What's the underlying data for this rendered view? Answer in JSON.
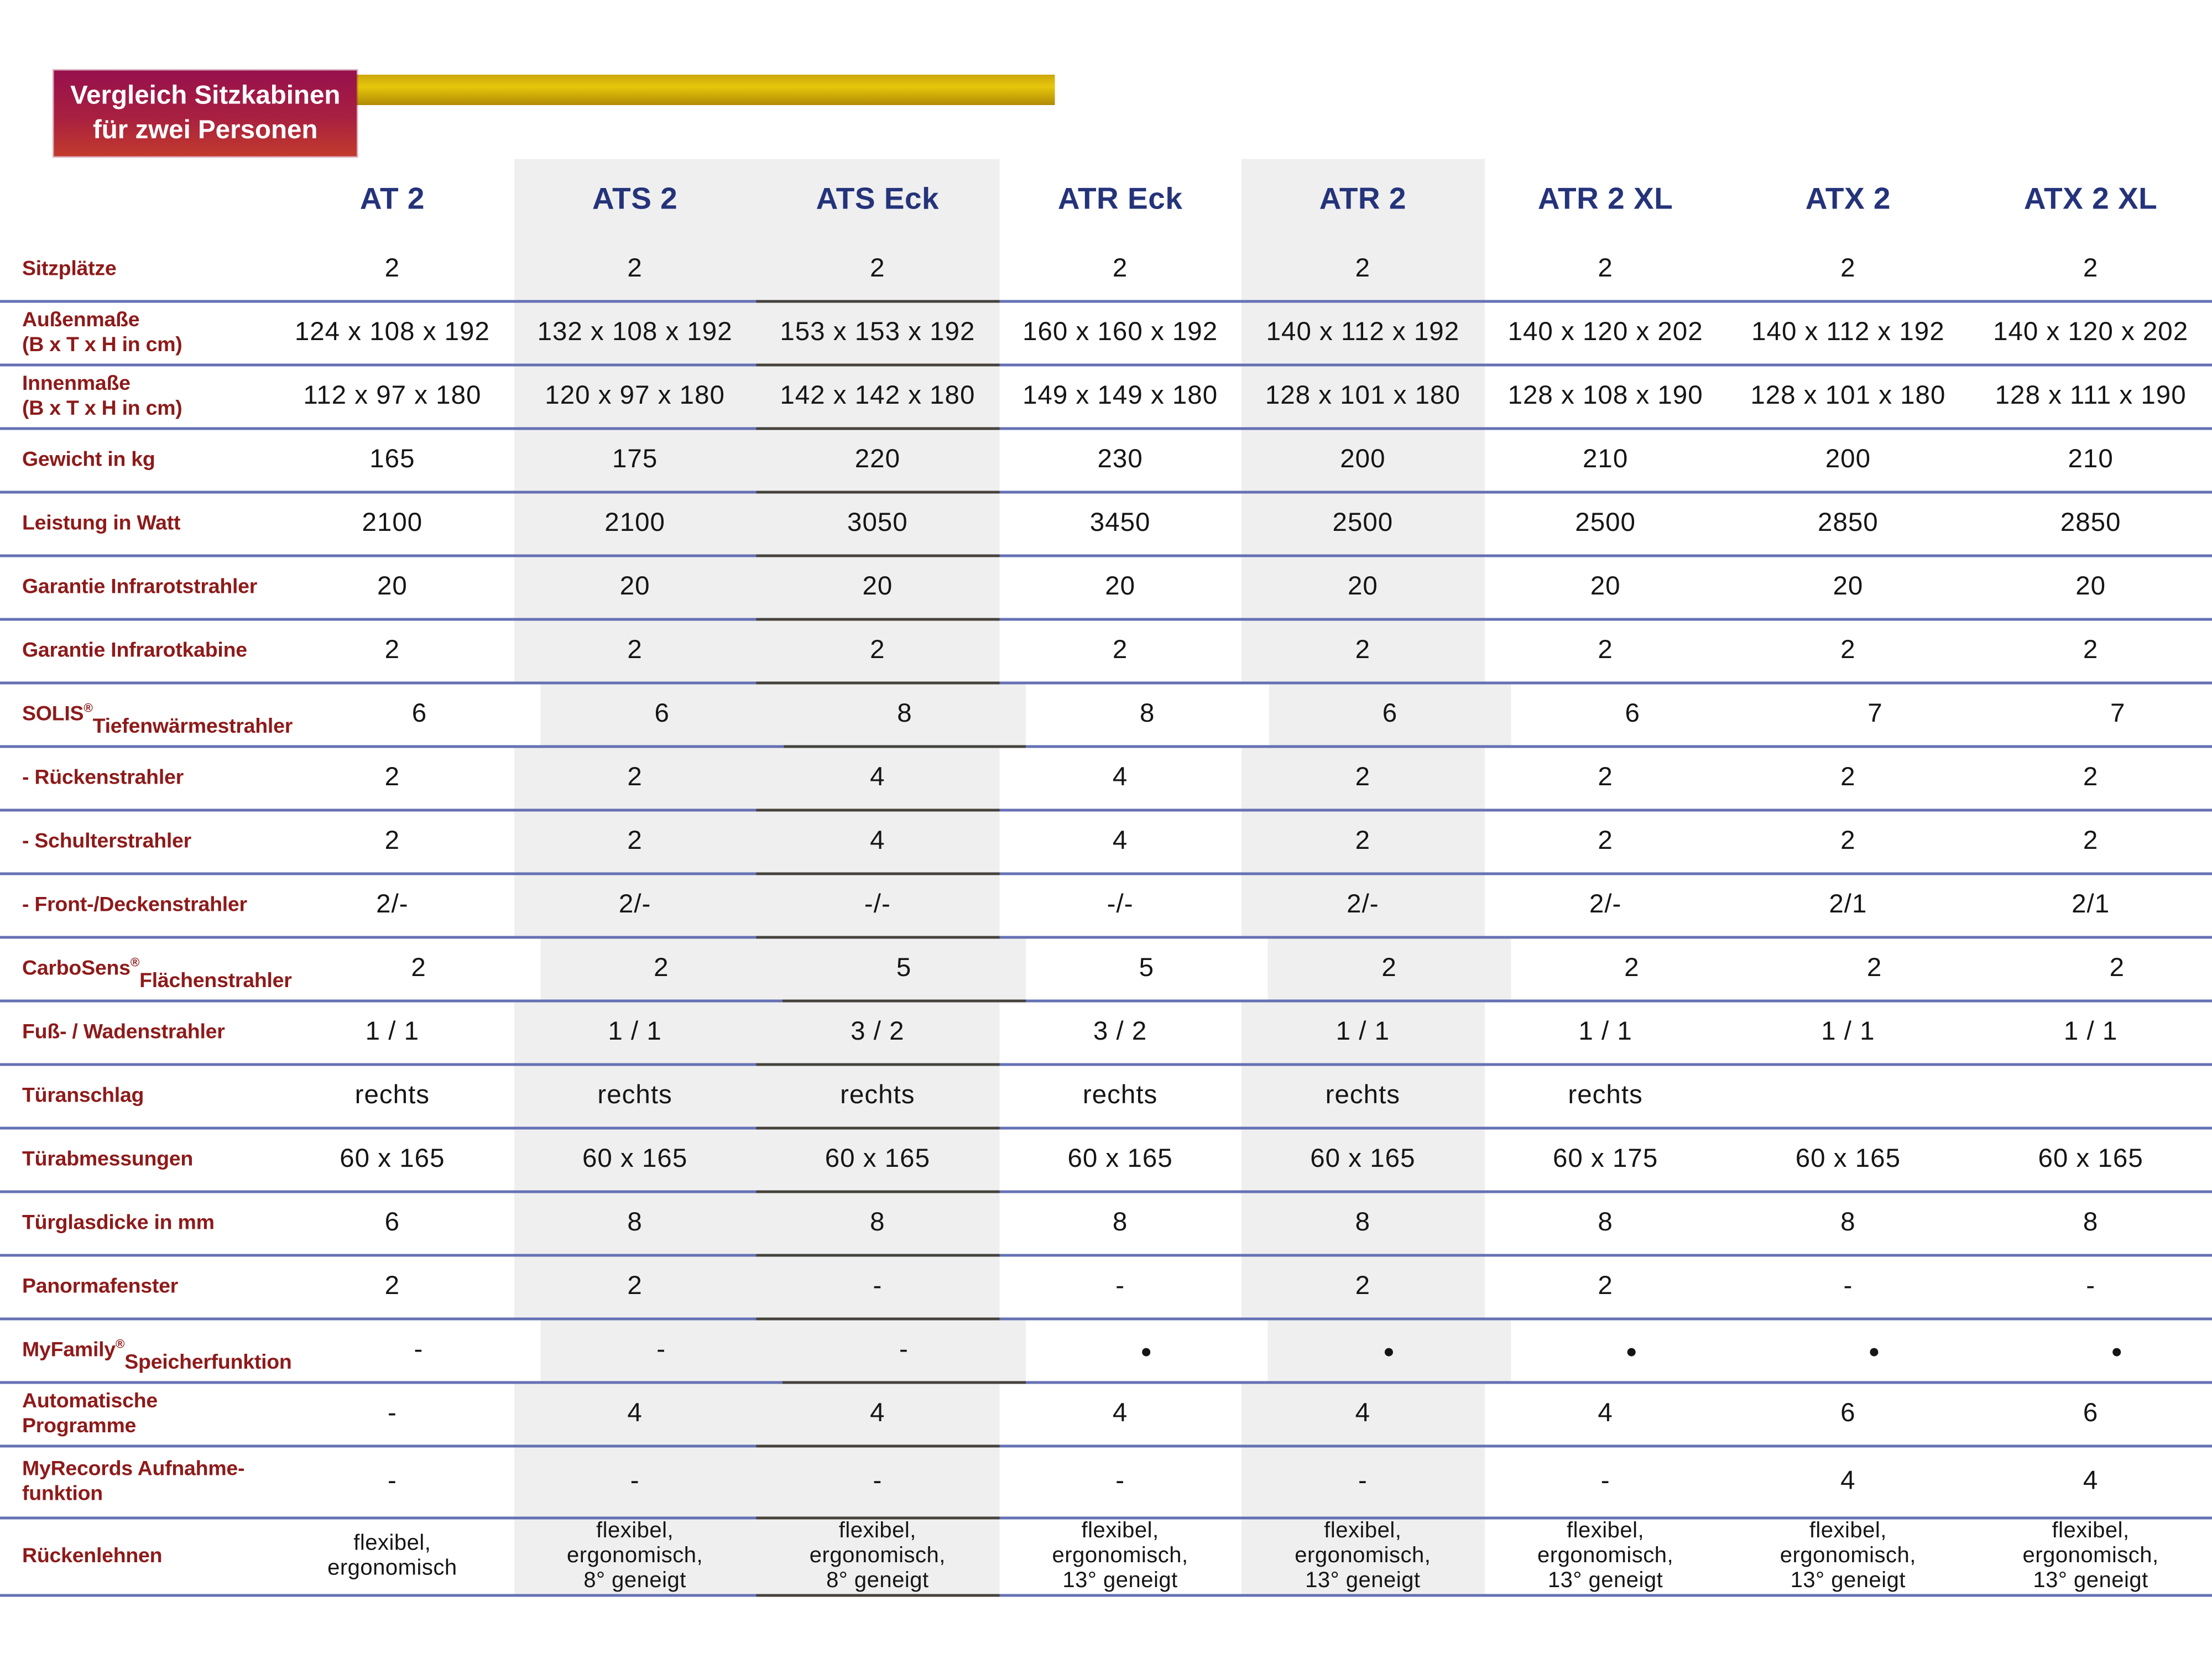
{
  "title_badge": {
    "lines": [
      "Vergleich Sitzkabinen",
      "für zwei Personen"
    ]
  },
  "table": {
    "columns": [
      {
        "label": "AT 2",
        "shaded": false,
        "highlight": false
      },
      {
        "label": "ATS 2",
        "shaded": true,
        "highlight": false
      },
      {
        "label": "ATS Eck",
        "shaded": true,
        "highlight": true
      },
      {
        "label": "ATR Eck",
        "shaded": false,
        "highlight": false
      },
      {
        "label": "ATR 2",
        "shaded": true,
        "highlight": false
      },
      {
        "label": "ATR 2 XL",
        "shaded": false,
        "highlight": false
      },
      {
        "label": "ATX 2",
        "shaded": false,
        "highlight": false
      },
      {
        "label": "ATX 2 XL",
        "shaded": false,
        "highlight": false
      }
    ],
    "rows": [
      {
        "label_lines": [
          "Sitzplätze"
        ],
        "values": [
          "2",
          "2",
          "2",
          "2",
          "2",
          "2",
          "2",
          "2"
        ]
      },
      {
        "label_lines": [
          "Außenmaße",
          "(B x T x H in cm)"
        ],
        "values": [
          "124 x 108 x 192",
          "132 x 108 x 192",
          "153 x 153 x 192",
          "160 x 160 x 192",
          "140 x 112 x 192",
          "140 x 120 x 202",
          "140 x 112 x 192",
          "140 x 120 x 202"
        ]
      },
      {
        "label_lines": [
          "Innenmaße",
          "(B x T x H in cm)"
        ],
        "values": [
          "112 x 97 x 180",
          "120 x 97 x 180",
          "142 x 142 x 180",
          "149 x 149 x 180",
          "128 x 101 x 180",
          "128 x 108 x 190",
          "128 x 101 x 180",
          "128 x 111 x 190"
        ]
      },
      {
        "label_lines": [
          "Gewicht in kg"
        ],
        "values": [
          "165",
          "175",
          "220",
          "230",
          "200",
          "210",
          "200",
          "210"
        ]
      },
      {
        "label_lines": [
          "Leistung in Watt"
        ],
        "values": [
          "2100",
          "2100",
          "3050",
          "3450",
          "2500",
          "2500",
          "2850",
          "2850"
        ]
      },
      {
        "label_lines": [
          "Garantie Infrarotstrahler"
        ],
        "values": [
          "20",
          "20",
          "20",
          "20",
          "20",
          "20",
          "20",
          "20"
        ]
      },
      {
        "label_lines": [
          "Garantie Infrarotkabine"
        ],
        "values": [
          "2",
          "2",
          "2",
          "2",
          "2",
          "2",
          "2",
          "2"
        ]
      },
      {
        "label_lines": [
          "SOLIS®",
          "Tiefenwärmestrahler"
        ],
        "values": [
          "6",
          "6",
          "8",
          "8",
          "6",
          "6",
          "7",
          "7"
        ]
      },
      {
        "label_lines": [
          "- Rückenstrahler"
        ],
        "values": [
          "2",
          "2",
          "4",
          "4",
          "2",
          "2",
          "2",
          "2"
        ]
      },
      {
        "label_lines": [
          "- Schulterstrahler"
        ],
        "values": [
          "2",
          "2",
          "4",
          "4",
          "2",
          "2",
          "2",
          "2"
        ]
      },
      {
        "label_lines": [
          "- Front-/Deckenstrahler"
        ],
        "values": [
          "2/-",
          "2/-",
          "-/-",
          "-/-",
          "2/-",
          "2/-",
          "2/1",
          "2/1"
        ]
      },
      {
        "label_lines": [
          "CarboSens®",
          "Flächenstrahler"
        ],
        "values": [
          "2",
          "2",
          "5",
          "5",
          "2",
          "2",
          "2",
          "2"
        ]
      },
      {
        "label_lines": [
          "Fuß- / Wadenstrahler"
        ],
        "values": [
          "1 / 1",
          "1 / 1",
          "3 / 2",
          "3 / 2",
          "1 / 1",
          "1 / 1",
          "1 / 1",
          "1 / 1"
        ]
      },
      {
        "label_lines": [
          "Türanschlag"
        ],
        "values": [
          "rechts",
          "rechts",
          "rechts",
          "rechts",
          "rechts",
          "rechts",
          "",
          ""
        ]
      },
      {
        "label_lines": [
          "Türabmessungen"
        ],
        "values": [
          "60 x 165",
          "60 x 165",
          "60 x 165",
          "60 x 165",
          "60 x 165",
          "60 x 175",
          "60 x 165",
          "60 x 165"
        ]
      },
      {
        "label_lines": [
          "Türglasdicke in mm"
        ],
        "values": [
          "6",
          "8",
          "8",
          "8",
          "8",
          "8",
          "8",
          "8"
        ]
      },
      {
        "label_lines": [
          "Panormafenster"
        ],
        "values": [
          "2",
          "2",
          "-",
          "-",
          "2",
          "2",
          "-",
          "-"
        ]
      },
      {
        "label_lines": [
          "MyFamily®",
          "Speicherfunktion"
        ],
        "values": [
          "-",
          "-",
          "-",
          "●",
          "●",
          "●",
          "●",
          "●"
        ]
      },
      {
        "label_lines": [
          "Automatische",
          "Programme"
        ],
        "values": [
          "-",
          "4",
          "4",
          "4",
          "4",
          "4",
          "6",
          "6"
        ]
      },
      {
        "label_lines": [
          "MyRecords Aufnahme-",
          "funktion"
        ],
        "values": [
          "-",
          "-",
          "-",
          "-",
          "-",
          "-",
          "4",
          "4"
        ]
      },
      {
        "label_lines": [
          "Rückenlehnen"
        ],
        "values": [
          "flexibel,\nergonomisch",
          "flexibel,\nergonomisch,\n8° geneigt",
          "flexibel,\nergonomisch,\n8° geneigt",
          "flexibel,\nergonomisch,\n13° geneigt",
          "flexibel,\nergonomisch,\n13° geneigt",
          "flexibel,\nergonomisch,\n13° geneigt",
          "flexibel,\nergonomisch,\n13° geneigt",
          "flexibel,\nergonomisch,\n13° geneigt"
        ]
      }
    ]
  },
  "colors": {
    "badge_gradient_top": "#97104D",
    "badge_gradient_bottom": "#C23A2C",
    "accent_bar_gold": "#D9B40A",
    "column_header_text": "#24337A",
    "row_label_text": "#8E1A1A",
    "cell_text": "#151515",
    "rule_blue": "#6671B4",
    "rule_dark": "#45433C",
    "column_shade_gray": "#EFEFEF"
  }
}
